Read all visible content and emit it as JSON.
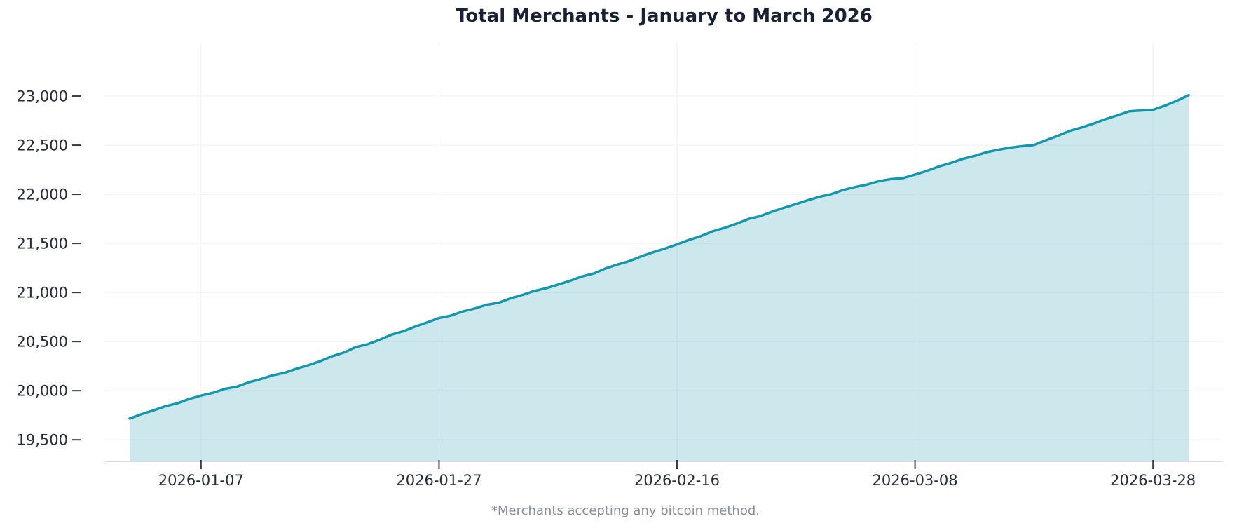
{
  "page": {
    "title": "Total Merchants - January to March 2026",
    "footnote": "*Merchants accepting any bitcoin method."
  },
  "colors": {
    "background": "#ffffff",
    "line": "#1497ab",
    "fill": "rgba(21,152,171,0.22)",
    "grid": "#f1f1f4",
    "spine": "#dcdde0",
    "tick_mark": "#363c4c",
    "tick_label": "#262c3d",
    "title": "#1b2134",
    "footnote": "#878d9c"
  },
  "chart_data": {
    "type": "area",
    "title": "Total Merchants - January to March 2026",
    "xlabel": "",
    "ylabel": "",
    "series_name": "Total Merchants",
    "annotation": "*Merchants accepting any bitcoin method.",
    "grid": true,
    "legend": false,
    "ylim": [
      19280,
      23550
    ],
    "xlim_index": [
      -2.06,
      91.88
    ],
    "y_ticks": [
      {
        "value": 19500,
        "label": "19,500"
      },
      {
        "value": 20000,
        "label": "20,000"
      },
      {
        "value": 20500,
        "label": "20,500"
      },
      {
        "value": 21000,
        "label": "21,000"
      },
      {
        "value": 21500,
        "label": "21,500"
      },
      {
        "value": 22000,
        "label": "22,000"
      },
      {
        "value": 22500,
        "label": "22,500"
      },
      {
        "value": 23000,
        "label": "23,000"
      }
    ],
    "x_ticks": [
      {
        "index": 6,
        "label": "2026-01-07"
      },
      {
        "index": 26,
        "label": "2026-01-27"
      },
      {
        "index": 46,
        "label": "2026-02-16"
      },
      {
        "index": 66,
        "label": "2026-03-08"
      },
      {
        "index": 86,
        "label": "2026-03-28"
      }
    ],
    "dates": [
      "2026-01-01",
      "2026-01-02",
      "2026-01-03",
      "2026-01-04",
      "2026-01-05",
      "2026-01-06",
      "2026-01-07",
      "2026-01-08",
      "2026-01-09",
      "2026-01-10",
      "2026-01-11",
      "2026-01-12",
      "2026-01-13",
      "2026-01-14",
      "2026-01-15",
      "2026-01-16",
      "2026-01-17",
      "2026-01-18",
      "2026-01-19",
      "2026-01-20",
      "2026-01-21",
      "2026-01-22",
      "2026-01-23",
      "2026-01-24",
      "2026-01-25",
      "2026-01-26",
      "2026-01-27",
      "2026-01-28",
      "2026-01-29",
      "2026-01-30",
      "2026-01-31",
      "2026-02-01",
      "2026-02-02",
      "2026-02-03",
      "2026-02-04",
      "2026-02-05",
      "2026-02-06",
      "2026-02-07",
      "2026-02-08",
      "2026-02-09",
      "2026-02-10",
      "2026-02-11",
      "2026-02-12",
      "2026-02-13",
      "2026-02-14",
      "2026-02-15",
      "2026-02-16",
      "2026-02-17",
      "2026-02-18",
      "2026-02-19",
      "2026-02-20",
      "2026-02-21",
      "2026-02-22",
      "2026-02-23",
      "2026-02-24",
      "2026-02-25",
      "2026-02-26",
      "2026-02-27",
      "2026-02-28",
      "2026-03-01",
      "2026-03-02",
      "2026-03-03",
      "2026-03-04",
      "2026-03-05",
      "2026-03-06",
      "2026-03-07",
      "2026-03-08",
      "2026-03-09",
      "2026-03-10",
      "2026-03-11",
      "2026-03-12",
      "2026-03-13",
      "2026-03-14",
      "2026-03-15",
      "2026-03-16",
      "2026-03-17",
      "2026-03-18",
      "2026-03-19",
      "2026-03-20",
      "2026-03-21",
      "2026-03-22",
      "2026-03-23",
      "2026-03-24",
      "2026-03-25",
      "2026-03-26",
      "2026-03-27",
      "2026-03-28",
      "2026-03-29",
      "2026-03-30",
      "2026-03-31"
    ],
    "values": [
      19716,
      19761,
      19799,
      19841,
      19871,
      19915,
      19950,
      19978,
      20018,
      20040,
      20085,
      20118,
      20156,
      20181,
      20223,
      20258,
      20300,
      20350,
      20388,
      20443,
      20473,
      20518,
      20570,
      20605,
      20653,
      20695,
      20740,
      20765,
      20807,
      20837,
      20875,
      20895,
      20940,
      20975,
      21015,
      21043,
      21080,
      21118,
      21163,
      21193,
      21245,
      21285,
      21320,
      21368,
      21410,
      21448,
      21490,
      21535,
      21573,
      21623,
      21658,
      21700,
      21748,
      21778,
      21823,
      21863,
      21900,
      21940,
      21975,
      22003,
      22045,
      22075,
      22100,
      22135,
      22155,
      22165,
      22200,
      22238,
      22283,
      22318,
      22360,
      22390,
      22428,
      22453,
      22475,
      22490,
      22502,
      22550,
      22595,
      22645,
      22680,
      22720,
      22765,
      22803,
      22845,
      22853,
      22860,
      22902,
      22952,
      23009
    ]
  }
}
